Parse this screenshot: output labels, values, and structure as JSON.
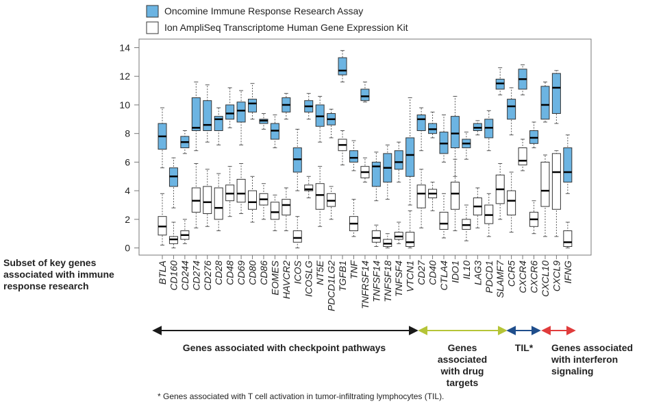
{
  "chart_data": {
    "type": "box",
    "side_label": [
      "Subset of key genes",
      "associated with immune",
      "response research"
    ],
    "categories": [
      "BTLA",
      "CD160",
      "CD244",
      "CD274",
      "CD276",
      "CD28",
      "CD48",
      "CD69",
      "CD80",
      "CD86",
      "EOMES",
      "HAVCR2",
      "ICOS",
      "ICOSLG",
      "NT5E",
      "PDCD1LG2",
      "TGFB1",
      "TNF",
      "TNFRSF14",
      "TNFSF14",
      "TNFSF18",
      "TNFSF4",
      "VTCN1",
      "CD27",
      "CD40",
      "CTLA4",
      "IDO1",
      "IL10",
      "LAG3",
      "PDCD1",
      "SLAMF7",
      "CCR5",
      "CXCR4",
      "CXCR6",
      "CXCL10",
      "CXCL9",
      "IFNG"
    ],
    "series": [
      {
        "name": "Oncomine Immune Response Research Assay",
        "color": "#6cb4e2",
        "values": [
          [
            5.6,
            6.9,
            7.8,
            8.7,
            9.8
          ],
          [
            2.8,
            4.3,
            5.0,
            5.6,
            6.3
          ],
          [
            6.6,
            7.0,
            7.4,
            7.8,
            8.2
          ],
          [
            6.8,
            8.2,
            8.4,
            10.5,
            11.6
          ],
          [
            7.4,
            8.2,
            8.6,
            10.3,
            11.4
          ],
          [
            7.2,
            8.2,
            9.0,
            9.2,
            9.8
          ],
          [
            8.4,
            9.0,
            9.4,
            10.0,
            11.2
          ],
          [
            7.2,
            8.8,
            9.6,
            10.2,
            11.0
          ],
          [
            9.0,
            9.5,
            10.1,
            10.4,
            11.5
          ],
          [
            8.3,
            8.7,
            8.9,
            9.0,
            9.4
          ],
          [
            7.0,
            7.6,
            8.2,
            8.7,
            9.3
          ],
          [
            9.0,
            9.5,
            10.0,
            10.5,
            10.8
          ],
          [
            4.0,
            5.3,
            6.2,
            7.0,
            8.3
          ],
          [
            9.0,
            9.5,
            9.9,
            10.3,
            10.8
          ],
          [
            7.4,
            8.5,
            9.2,
            10.0,
            10.6
          ],
          [
            7.7,
            8.6,
            9.0,
            9.4,
            9.7
          ],
          [
            11.6,
            12.1,
            12.4,
            13.3,
            13.8
          ],
          [
            5.4,
            6.0,
            6.3,
            6.8,
            7.5
          ],
          [
            10.2,
            10.3,
            10.6,
            11.1,
            11.6
          ],
          [
            3.3,
            4.3,
            5.7,
            6.0,
            6.7
          ],
          [
            3.4,
            4.6,
            5.6,
            6.6,
            7.2
          ],
          [
            4.6,
            5.5,
            6.0,
            6.8,
            7.4
          ],
          [
            3.0,
            5.0,
            6.5,
            7.7,
            10.5
          ],
          [
            6.8,
            8.2,
            9.0,
            9.3,
            9.8
          ],
          [
            7.7,
            8.0,
            8.3,
            8.7,
            9.5
          ],
          [
            6.0,
            6.6,
            7.3,
            8.1,
            9.3
          ],
          [
            5.0,
            7.0,
            8.0,
            9.2,
            10.6
          ],
          [
            6.2,
            7.0,
            7.3,
            7.6,
            8.1
          ],
          [
            7.9,
            8.2,
            8.4,
            8.7,
            8.9
          ],
          [
            6.8,
            7.7,
            8.4,
            9.0,
            9.6
          ],
          [
            10.7,
            11.1,
            11.5,
            11.8,
            12.6
          ],
          [
            7.9,
            9.0,
            9.9,
            10.4,
            11.2
          ],
          [
            10.7,
            11.1,
            11.8,
            12.5,
            12.8
          ],
          [
            7.0,
            7.3,
            7.7,
            8.2,
            8.8
          ],
          [
            8.8,
            9.0,
            10.0,
            11.3,
            11.6
          ],
          [
            8.7,
            9.4,
            11.2,
            12.2,
            12.4
          ],
          [
            3.8,
            4.6,
            5.3,
            7.0,
            7.9
          ]
        ]
      },
      {
        "name": "Ion AmpliSeq Transcriptome Human Gene Expression Kit",
        "color": "#ffffff",
        "values": [
          [
            0.2,
            0.9,
            1.5,
            2.2,
            3.8
          ],
          [
            0,
            0.3,
            0.6,
            0.8,
            1.8
          ],
          [
            0.3,
            0.6,
            0.9,
            1.2,
            2.0
          ],
          [
            1.4,
            2.5,
            3.3,
            4.2,
            5.9
          ],
          [
            1.5,
            2.4,
            3.2,
            4.3,
            5.5
          ],
          [
            1.2,
            2.0,
            2.8,
            4.2,
            5.2
          ],
          [
            2.2,
            3.3,
            3.8,
            4.4,
            5.7
          ],
          [
            2.4,
            3.2,
            3.8,
            4.8,
            5.9
          ],
          [
            1.8,
            2.7,
            3.2,
            4.0,
            5.0
          ],
          [
            2.0,
            3.0,
            3.4,
            3.8,
            4.5
          ],
          [
            1.2,
            2.0,
            2.5,
            3.2,
            3.7
          ],
          [
            1.2,
            2.3,
            3.0,
            3.4,
            4.2
          ],
          [
            0,
            0.4,
            0.7,
            1.2,
            2.2
          ],
          [
            3.5,
            4.0,
            4.1,
            4.4,
            5.0
          ],
          [
            1.5,
            2.7,
            3.7,
            4.5,
            5.7
          ],
          [
            2.0,
            2.9,
            3.3,
            3.8,
            4.3
          ],
          [
            5.8,
            6.8,
            7.2,
            7.6,
            8.2
          ],
          [
            0.8,
            1.2,
            1.7,
            2.2,
            3.4
          ],
          [
            4.6,
            4.9,
            5.3,
            5.7,
            6.3
          ],
          [
            0.1,
            0.4,
            0.7,
            1.2,
            1.6
          ],
          [
            0,
            0.1,
            0.3,
            0.6,
            1.0
          ],
          [
            0.3,
            0.6,
            0.8,
            1.1,
            1.8
          ],
          [
            0,
            0.1,
            0.4,
            1.1,
            2.6
          ],
          [
            1.4,
            2.8,
            3.8,
            4.4,
            5.5
          ],
          [
            2.6,
            3.5,
            3.8,
            4.1,
            4.6
          ],
          [
            0.7,
            1.3,
            1.7,
            2.5,
            3.8
          ],
          [
            1.2,
            2.7,
            3.8,
            4.6,
            6.2
          ],
          [
            0.5,
            1.3,
            1.6,
            2.0,
            3.0
          ],
          [
            1.4,
            2.3,
            2.9,
            3.5,
            4.2
          ],
          [
            0.8,
            1.7,
            2.3,
            3.0,
            3.8
          ],
          [
            2.0,
            3.1,
            4.1,
            5.1,
            5.9
          ],
          [
            1.1,
            2.3,
            3.3,
            4.0,
            5.3
          ],
          [
            5.4,
            5.8,
            6.1,
            7.0,
            7.6
          ],
          [
            1.0,
            1.5,
            2.0,
            2.5,
            3.3
          ],
          [
            0.8,
            2.9,
            4.0,
            6.0,
            6.5
          ],
          [
            0.8,
            2.7,
            5.3,
            6.6,
            6.8
          ],
          [
            0,
            0.1,
            0.4,
            1.2,
            1.8
          ]
        ]
      }
    ],
    "ylim": [
      -0.5,
      14.6
    ],
    "yticks": [
      0,
      2,
      4,
      6,
      8,
      10,
      12,
      14
    ],
    "groups": [
      {
        "label": [
          "Genes associated with checkpoint pathways"
        ],
        "color": "#1a1a1a"
      },
      {
        "label": [
          "Genes",
          "associated",
          "with drug",
          "targets"
        ],
        "color": "#b5c437"
      },
      {
        "label": [
          "TIL*"
        ],
        "color": "#1f4e8c"
      },
      {
        "label": [
          "Genes associated",
          "with interferon",
          "signaling"
        ],
        "color": "#e03c3c"
      }
    ],
    "footnote": "* Genes associated with T cell activation in tumor-infiltrating lymphocytes (TIL)."
  }
}
